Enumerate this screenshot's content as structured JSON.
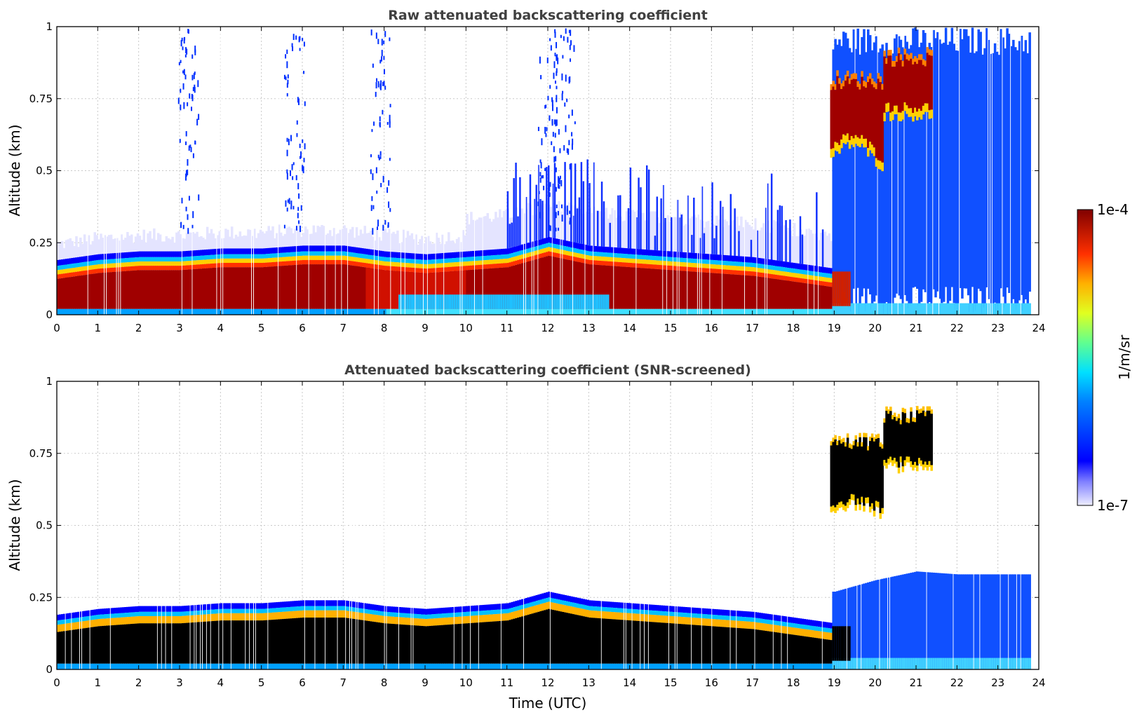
{
  "chart_data": [
    {
      "type": "heatmap",
      "title": "Raw attenuated backscattering coefficient",
      "xlabel": "",
      "ylabel": "Altitude (km)",
      "xlim": [
        0,
        24
      ],
      "ylim": [
        0,
        1
      ],
      "x_ticks": [
        "0",
        "1",
        "2",
        "3",
        "4",
        "5",
        "6",
        "7",
        "8",
        "9",
        "10",
        "11",
        "12",
        "13",
        "14",
        "15",
        "16",
        "17",
        "18",
        "19",
        "20",
        "21",
        "22",
        "23",
        "24"
      ],
      "y_ticks": [
        "0",
        "0.25",
        "0.5",
        "0.75",
        "1"
      ],
      "x_tick_values": [
        0,
        1,
        2,
        3,
        4,
        5,
        6,
        7,
        8,
        9,
        10,
        11,
        12,
        13,
        14,
        15,
        16,
        17,
        18,
        19,
        20,
        21,
        22,
        23,
        24
      ],
      "y_tick_values": [
        0,
        0.25,
        0.5,
        0.75,
        1
      ],
      "grid": true,
      "data_extent_hours": [
        0,
        23.8
      ],
      "boundary_layer_top_km": [
        [
          0,
          0.19
        ],
        [
          1,
          0.21
        ],
        [
          2,
          0.22
        ],
        [
          3,
          0.22
        ],
        [
          4,
          0.23
        ],
        [
          5,
          0.23
        ],
        [
          6,
          0.24
        ],
        [
          7,
          0.24
        ],
        [
          8,
          0.22
        ],
        [
          9,
          0.21
        ],
        [
          10,
          0.22
        ],
        [
          11,
          0.23
        ],
        [
          12,
          0.27
        ],
        [
          13,
          0.24
        ],
        [
          14,
          0.23
        ],
        [
          15,
          0.22
        ],
        [
          16,
          0.21
        ],
        [
          17,
          0.2
        ],
        [
          18,
          0.18
        ],
        [
          19,
          0.16
        ]
      ],
      "elevated_cloud": {
        "x_range": [
          18.9,
          21.4
        ],
        "base_km": 0.55,
        "top_km": 0.9,
        "value": "1e-4"
      },
      "colorscale_range": [
        "1e-7",
        "1e-4"
      ]
    },
    {
      "type": "heatmap",
      "title": "Attenuated backscattering coefficient (SNR-screened)",
      "xlabel": "Time (UTC)",
      "ylabel": "Altitude (km)",
      "xlim": [
        0,
        24
      ],
      "ylim": [
        0,
        1
      ],
      "x_ticks": [
        "0",
        "1",
        "2",
        "3",
        "4",
        "5",
        "6",
        "7",
        "8",
        "9",
        "10",
        "11",
        "12",
        "13",
        "14",
        "15",
        "16",
        "17",
        "18",
        "19",
        "20",
        "21",
        "22",
        "23",
        "24"
      ],
      "y_ticks": [
        "0",
        "0.25",
        "0.5",
        "0.75",
        "1"
      ],
      "x_tick_values": [
        0,
        1,
        2,
        3,
        4,
        5,
        6,
        7,
        8,
        9,
        10,
        11,
        12,
        13,
        14,
        15,
        16,
        17,
        18,
        19,
        20,
        21,
        22,
        23,
        24
      ],
      "y_tick_values": [
        0,
        0.25,
        0.5,
        0.75,
        1
      ],
      "grid": true,
      "screened_fill": "#000000",
      "upper_blue_layer_km": [
        [
          19,
          0.27
        ],
        [
          20,
          0.31
        ],
        [
          21,
          0.34
        ],
        [
          22,
          0.33
        ],
        [
          23.8,
          0.33
        ]
      ],
      "colorscale_range": [
        "1e-7",
        "1e-4"
      ]
    }
  ],
  "colorbar": {
    "label": "1/m/sr",
    "max_label": "1e-4",
    "min_label": "1e-7",
    "colormap": "jet"
  }
}
